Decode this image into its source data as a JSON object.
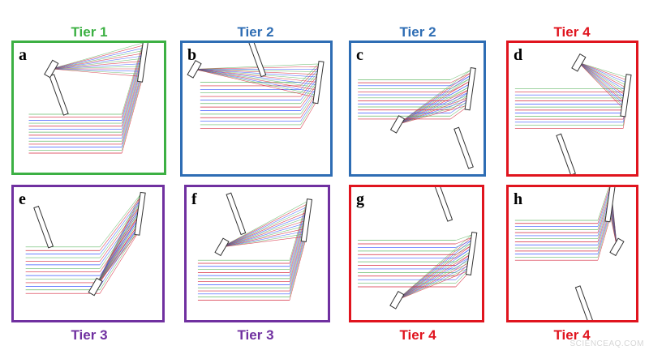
{
  "colors": {
    "tier1": "#3cb043",
    "tier2": "#2e6db4",
    "tier3": "#7030a0",
    "tier4": "#e0141e",
    "ray_green": "#4caf50",
    "ray_red": "#d0021b",
    "ray_blue": "#1a3cff",
    "mirror": "#333333"
  },
  "panels": [
    {
      "letter": "a",
      "tier_label": "Tier 1",
      "tier": "tier1"
    },
    {
      "letter": "b",
      "tier_label": "Tier 2",
      "tier": "tier2"
    },
    {
      "letter": "c",
      "tier_label": "Tier 2",
      "tier": "tier2"
    },
    {
      "letter": "d",
      "tier_label": "Tier 4",
      "tier": "tier4"
    },
    {
      "letter": "e",
      "tier_label": "Tier 3",
      "tier": "tier3"
    },
    {
      "letter": "f",
      "tier_label": "Tier 3",
      "tier": "tier3"
    },
    {
      "letter": "g",
      "tier_label": "Tier 4",
      "tier": "tier4"
    },
    {
      "letter": "h",
      "tier_label": "Tier 4",
      "tier": "tier4"
    }
  ],
  "watermark": "SCIENCEAQ.COM"
}
